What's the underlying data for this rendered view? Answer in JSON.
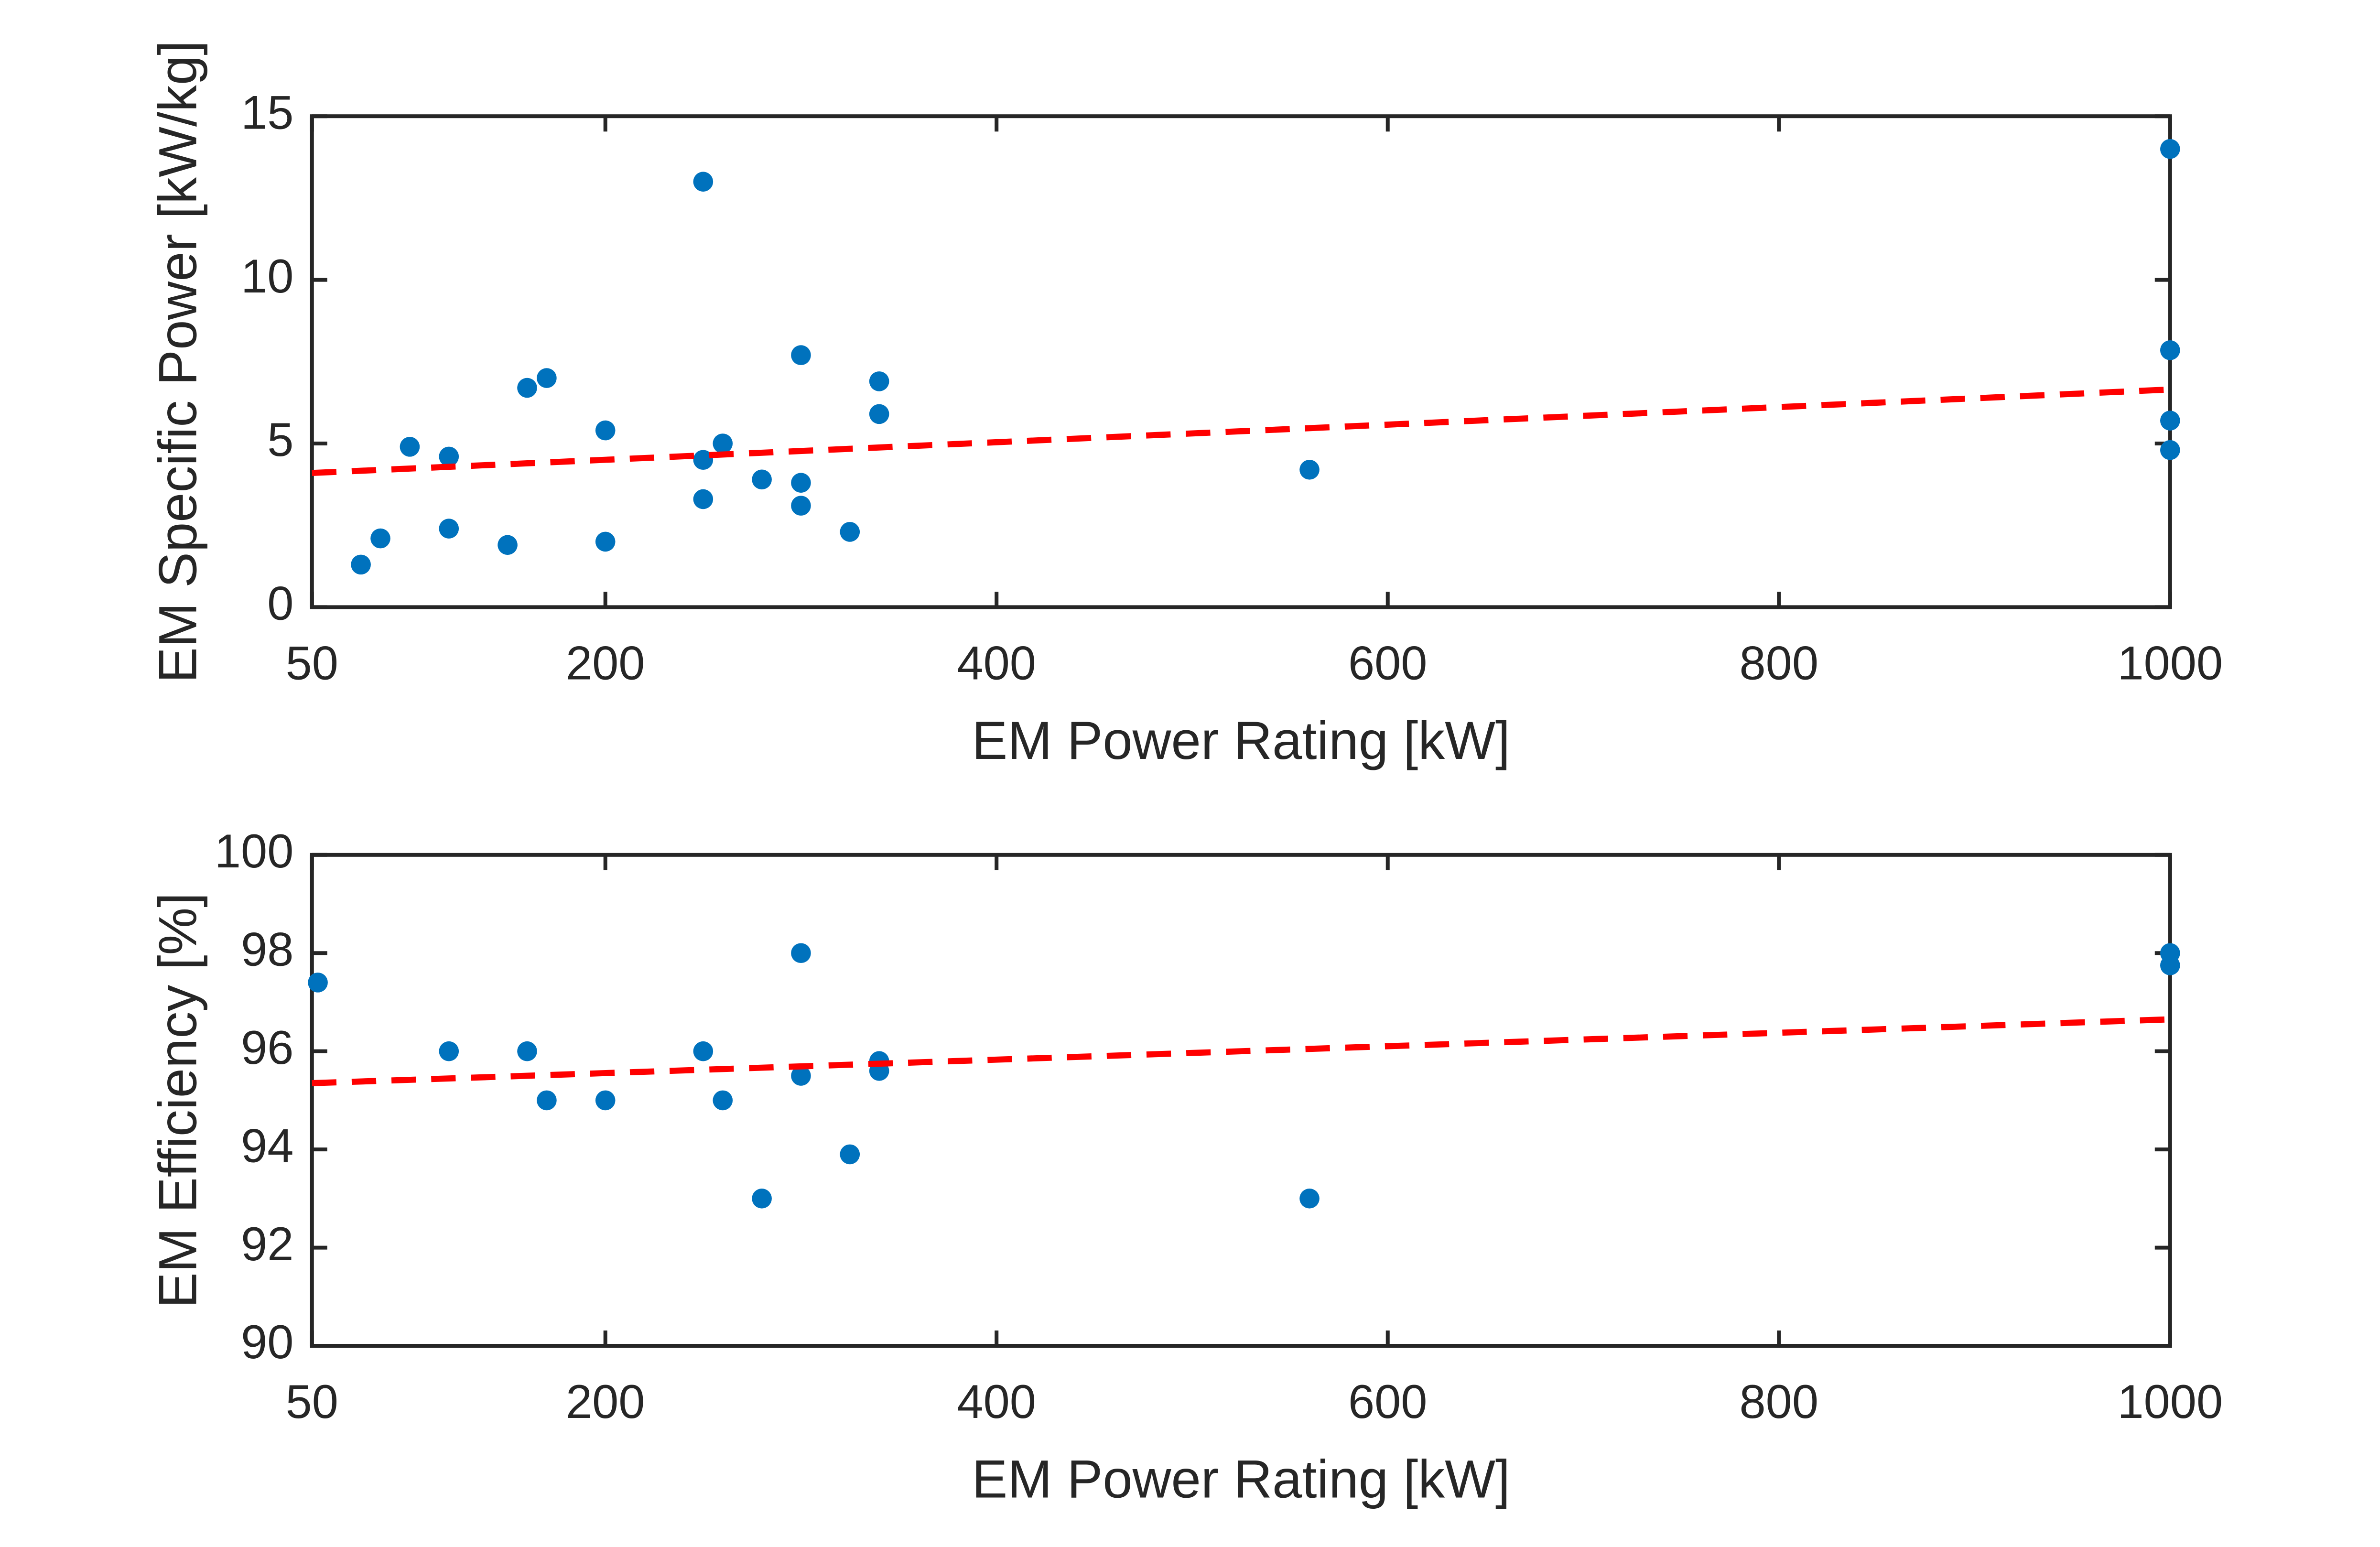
{
  "chart_data": [
    {
      "type": "scatter",
      "x_label": "EM Power Rating [kW]",
      "y_label": "EM Specific Power [kW/kg]",
      "xlim": [
        50,
        1000
      ],
      "xticks": [
        50,
        200,
        400,
        600,
        800,
        1000
      ],
      "ylim": [
        0,
        15
      ],
      "yticks": [
        0,
        5,
        10,
        15
      ],
      "points": {
        "color": "#0072bd",
        "x": [
          75,
          85,
          100,
          120,
          120,
          150,
          160,
          170,
          200,
          200,
          250,
          250,
          250,
          260,
          280,
          300,
          300,
          300,
          325,
          340,
          340,
          560,
          1000,
          1000,
          1000,
          1000
        ],
        "values": [
          1.3,
          2.1,
          4.9,
          4.6,
          2.4,
          1.9,
          6.7,
          7.0,
          5.4,
          2.0,
          13.0,
          4.5,
          3.3,
          5.0,
          3.9,
          7.7,
          3.8,
          3.1,
          2.3,
          6.9,
          5.9,
          4.2,
          14.0,
          7.85,
          5.7,
          4.8
        ]
      },
      "trend": {
        "color": "#ff0000",
        "style": "dashed",
        "x": [
          50,
          1000
        ],
        "values": [
          4.1,
          6.65
        ]
      }
    },
    {
      "type": "scatter",
      "x_label": "EM Power Rating [kW]",
      "y_label": "EM Efficiency [%]",
      "xlim": [
        50,
        1000
      ],
      "xticks": [
        50,
        200,
        400,
        600,
        800,
        1000
      ],
      "ylim": [
        90,
        100
      ],
      "yticks": [
        90,
        92,
        94,
        96,
        98,
        100
      ],
      "points": {
        "color": "#0072bd",
        "x": [
          53,
          120,
          160,
          170,
          200,
          250,
          260,
          280,
          300,
          300,
          325,
          340,
          340,
          560,
          1000,
          1000
        ],
        "values": [
          97.4,
          96.0,
          96.0,
          95.0,
          95.0,
          96.0,
          95.0,
          93.0,
          98.0,
          95.5,
          93.9,
          95.8,
          95.6,
          93.0,
          98.0,
          97.75
        ]
      },
      "trend": {
        "color": "#ff0000",
        "style": "dashed",
        "x": [
          50,
          1000
        ],
        "values": [
          95.35,
          96.65
        ]
      }
    }
  ]
}
